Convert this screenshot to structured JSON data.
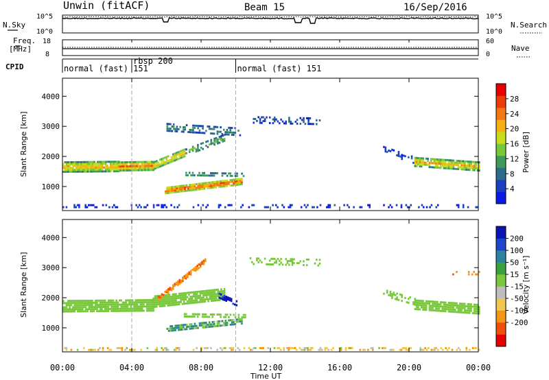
{
  "header": {
    "station": "Unwin (fitACF)",
    "beam": "Beam 15",
    "date": "16/Sep/2016"
  },
  "top_panels": {
    "sky": {
      "left_label": "N.Sky",
      "left_ticks": [
        "10^5",
        "10^0"
      ],
      "right_label": "N.Search",
      "right_ticks": [
        "10^5",
        "10^0"
      ]
    },
    "freq": {
      "left_label_1": "Freq.",
      "left_label_2": "[MHz]",
      "left_ticks": [
        "18",
        "8"
      ],
      "right_label": "Nave",
      "right_ticks": [
        "60",
        "0"
      ]
    },
    "cpid": {
      "label": "CPID",
      "segments": [
        {
          "start_h": 0,
          "end_h": 4,
          "label": "normal (fast) 151"
        },
        {
          "start_h": 4,
          "end_h": 10,
          "label": "rbsp 200"
        },
        {
          "start_h": 10,
          "end_h": 24,
          "label": "normal (fast) 151"
        }
      ]
    }
  },
  "colors": {
    "power_scale": [
      "#0a1ae6",
      "#1c3fbf",
      "#2f6b8a",
      "#3d9a5a",
      "#78c83c",
      "#c8dc1e",
      "#f5b014",
      "#f57814",
      "#eb3c0a",
      "#e60000"
    ],
    "velocity_scale": [
      "#e60000",
      "#f0500a",
      "#f59614",
      "#f0c850",
      "#bebebe",
      "#7ac83c",
      "#3ca03c",
      "#2d82a0",
      "#1e46c8",
      "#0a14b4"
    ],
    "cursor_lines": "#aaaaaa"
  },
  "chart_data": [
    {
      "type": "heatmap",
      "title": "Power",
      "ylabel": "Slant Range [km]",
      "xlabel": "Time UT",
      "xlim": [
        0,
        24
      ],
      "ylim": [
        200,
        4600
      ],
      "x_ticks": [
        "00:00",
        "04:00",
        "08:00",
        "12:00",
        "16:00",
        "20:00",
        "00:00"
      ],
      "y_ticks": [
        1000,
        2000,
        3000,
        4000
      ],
      "colorbar": {
        "label": "Power [dB]",
        "range": [
          0,
          32
        ],
        "ticks": [
          4,
          8,
          12,
          16,
          20,
          24,
          28
        ]
      },
      "cursor_lines_h": [
        4,
        10
      ],
      "regions": [
        {
          "t_start": 0.0,
          "t_end": 3.2,
          "r_center": [
            1680,
            1700
          ],
          "width_km": 380,
          "power_db": 22,
          "density": 0.95
        },
        {
          "t_start": 3.2,
          "t_end": 5.2,
          "r_center": [
            1700,
            1720
          ],
          "width_km": 340,
          "power_db": 24,
          "density": 0.95
        },
        {
          "t_start": 5.2,
          "t_end": 7.0,
          "r_center": [
            1720,
            2150
          ],
          "width_km": 300,
          "power_db": 22,
          "density": 0.9
        },
        {
          "t_start": 7.0,
          "t_end": 9.3,
          "r_center": [
            2150,
            2650
          ],
          "width_km": 260,
          "power_db": 14,
          "density": 0.55
        },
        {
          "t_start": 6.0,
          "t_end": 10.2,
          "r_center": [
            3000,
            2850
          ],
          "width_km": 300,
          "power_db": 11,
          "density": 0.5
        },
        {
          "t_start": 5.9,
          "t_end": 10.3,
          "r_center": [
            900,
            1200
          ],
          "width_km": 240,
          "power_db": 27,
          "density": 0.9
        },
        {
          "t_start": 7.0,
          "t_end": 10.5,
          "r_center": [
            1450,
            1420
          ],
          "width_km": 160,
          "power_db": 13,
          "density": 0.55
        },
        {
          "t_start": 10.8,
          "t_end": 14.8,
          "r_center": [
            3250,
            3200
          ],
          "width_km": 250,
          "power_db": 7,
          "density": 0.35
        },
        {
          "t_start": 18.5,
          "t_end": 20.3,
          "r_center": [
            2250,
            1900
          ],
          "width_km": 260,
          "power_db": 6,
          "density": 0.35
        },
        {
          "t_start": 20.3,
          "t_end": 24.0,
          "r_center": [
            1850,
            1700
          ],
          "width_km": 340,
          "power_db": 21,
          "density": 0.85
        },
        {
          "t_start": 0.0,
          "t_end": 24.0,
          "r_center": [
            380,
            380
          ],
          "width_km": 140,
          "power_db": 5,
          "density": 0.22
        }
      ]
    },
    {
      "type": "heatmap",
      "title": "Velocity",
      "ylabel": "Slant Range [km]",
      "xlabel": "Time UT",
      "xlim": [
        0,
        24
      ],
      "ylim": [
        200,
        4600
      ],
      "x_ticks": [
        "00:00",
        "04:00",
        "08:00",
        "12:00",
        "16:00",
        "20:00",
        "00:00"
      ],
      "y_ticks": [
        1000,
        2000,
        3000,
        4000
      ],
      "colorbar": {
        "label": "Velocity [m s⁻¹]",
        "range": [
          -250,
          250
        ],
        "ticks": [
          "200",
          "100",
          "50",
          "15",
          "-15",
          "-50",
          "-100",
          "-200"
        ]
      },
      "cursor_lines_h": [
        4,
        10
      ],
      "regions": [
        {
          "t_start": 0.0,
          "t_end": 5.2,
          "r_center": [
            1750,
            1780
          ],
          "width_km": 420,
          "velocity": 0,
          "density": 0.9
        },
        {
          "t_start": 5.2,
          "t_end": 9.3,
          "r_center": [
            1900,
            2150
          ],
          "width_km": 420,
          "velocity": 0,
          "density": 0.9
        },
        {
          "t_start": 9.0,
          "t_end": 10.0,
          "r_center": [
            2100,
            1850
          ],
          "width_km": 200,
          "velocity": 220,
          "density": 0.8
        },
        {
          "t_start": 5.5,
          "t_end": 8.2,
          "r_center": [
            2000,
            3250
          ],
          "width_km": 180,
          "velocity": -180,
          "density": 0.75
        },
        {
          "t_start": 6.0,
          "t_end": 10.3,
          "r_center": [
            1000,
            1250
          ],
          "width_km": 220,
          "velocity": 40,
          "density": 0.8
        },
        {
          "t_start": 7.0,
          "t_end": 10.5,
          "r_center": [
            1450,
            1420
          ],
          "width_km": 160,
          "velocity": 0,
          "density": 0.55
        },
        {
          "t_start": 10.8,
          "t_end": 14.8,
          "r_center": [
            3250,
            3200
          ],
          "width_km": 250,
          "velocity": 0,
          "density": 0.3
        },
        {
          "t_start": 18.5,
          "t_end": 20.3,
          "r_center": [
            2200,
            1900
          ],
          "width_km": 260,
          "velocity": 0,
          "density": 0.35
        },
        {
          "t_start": 20.3,
          "t_end": 24.0,
          "r_center": [
            1800,
            1650
          ],
          "width_km": 360,
          "velocity": 0,
          "density": 0.85
        },
        {
          "t_start": 22.5,
          "t_end": 24.0,
          "r_center": [
            2850,
            2850
          ],
          "width_km": 160,
          "velocity": -170,
          "density": 0.35
        },
        {
          "t_start": 0.0,
          "t_end": 24.0,
          "r_center": [
            330,
            330
          ],
          "width_km": 120,
          "velocity": -60,
          "density": 0.3
        }
      ]
    }
  ]
}
